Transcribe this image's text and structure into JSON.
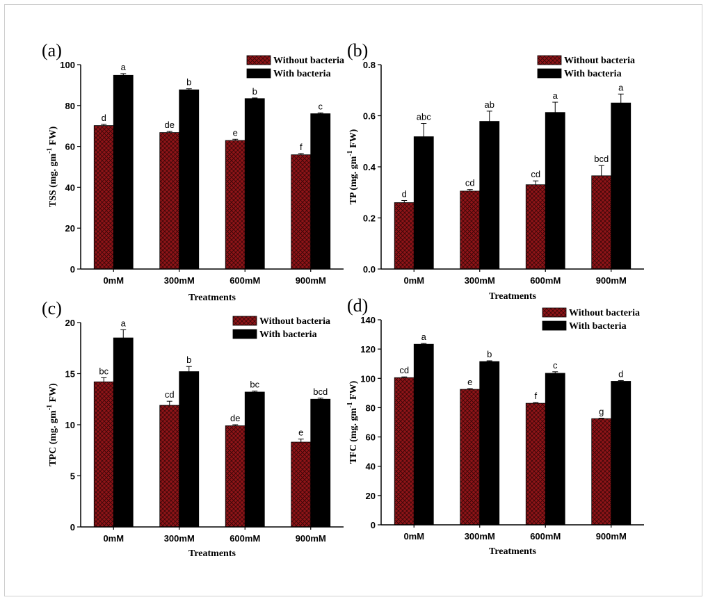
{
  "colors": {
    "without_bacteria": "#8f1418",
    "without_bacteria_hatch": "#3a0608",
    "with_bacteria": "#000000"
  },
  "chart_data": [
    {
      "id": "a",
      "type": "bar",
      "panel_label": "(a)",
      "categories": [
        "0mM",
        "300mM",
        "600mM",
        "900mM"
      ],
      "ylabel_main": "TSS (mg. gm",
      "ylabel_sup": "-1",
      "ylabel_tail": " FW)",
      "xlabel": "",
      "ylim": [
        0,
        100
      ],
      "yticks": [
        0,
        20,
        40,
        60,
        80,
        100
      ],
      "ytick_labels": [
        "0",
        "20",
        "40",
        "60",
        "80",
        "100"
      ],
      "legend": [
        "Without bacteria",
        "With bacteria"
      ],
      "series": [
        {
          "name": "Without bacteria",
          "values": [
            70.2,
            66.8,
            62.9,
            55.9
          ],
          "errors": [
            0.6,
            0.5,
            0.6,
            0.6
          ],
          "letters": [
            "d",
            "de",
            "e",
            "f"
          ]
        },
        {
          "name": "With bacteria",
          "values": [
            94.8,
            87.7,
            83.4,
            76.0
          ],
          "errors": [
            0.8,
            0.5,
            0.3,
            0.4
          ],
          "letters": [
            "a",
            "b",
            "b",
            "c"
          ]
        }
      ]
    },
    {
      "id": "b",
      "type": "bar",
      "panel_label": "(b)",
      "categories": [
        "0mM",
        "300mM",
        "600mM",
        "900mM"
      ],
      "ylabel_main": "TP (mg. gm",
      "ylabel_sup": "-1",
      "ylabel_tail": " FW)",
      "xlabel": "Treatments",
      "ylim": [
        0,
        0.8
      ],
      "yticks": [
        0,
        0.2,
        0.4,
        0.6,
        0.8
      ],
      "ytick_labels": [
        "0.0",
        "0.2",
        "0.4",
        "0.6",
        "0.8"
      ],
      "legend": [
        "Without bacteria",
        "With bacteria"
      ],
      "series": [
        {
          "name": "Without bacteria",
          "values": [
            0.26,
            0.305,
            0.33,
            0.365
          ],
          "errors": [
            0.008,
            0.006,
            0.015,
            0.04
          ],
          "letters": [
            "d",
            "cd",
            "cd",
            "bcd"
          ]
        },
        {
          "name": "With bacteria",
          "values": [
            0.518,
            0.578,
            0.613,
            0.65
          ],
          "errors": [
            0.052,
            0.04,
            0.04,
            0.035
          ],
          "letters": [
            "abc",
            "ab",
            "a",
            "a"
          ]
        }
      ]
    },
    {
      "id": "c",
      "type": "bar",
      "panel_label": "(c)",
      "categories": [
        "0mM",
        "300mM",
        "600mM",
        "900mM"
      ],
      "ylabel_main": "TPC (mg. gm",
      "ylabel_sup": "-1",
      "ylabel_tail": " FW)",
      "xlabel": "Treatments",
      "ylim": [
        0,
        20
      ],
      "yticks": [
        0,
        5,
        10,
        15,
        20
      ],
      "ytick_labels": [
        "0",
        "5",
        "10",
        "15",
        "20"
      ],
      "legend": [
        "Without bacteria",
        "With bacteria"
      ],
      "series": [
        {
          "name": "Without bacteria",
          "values": [
            14.2,
            11.9,
            9.9,
            8.3
          ],
          "errors": [
            0.4,
            0.4,
            0.1,
            0.3
          ],
          "letters": [
            "bc",
            "cd",
            "de",
            "e"
          ]
        },
        {
          "name": "With bacteria",
          "values": [
            18.5,
            15.2,
            13.2,
            12.5
          ],
          "errors": [
            0.8,
            0.5,
            0.1,
            0.1
          ],
          "letters": [
            "a",
            "b",
            "bc",
            "bcd"
          ]
        }
      ]
    },
    {
      "id": "d",
      "type": "bar",
      "panel_label": "(d)",
      "categories": [
        "0mM",
        "300mM",
        "600mM",
        "900mM"
      ],
      "ylabel_main": "TFC (mg. gm",
      "ylabel_sup": "-1",
      "ylabel_tail": " FW)",
      "xlabel": "Treatments",
      "ylim": [
        0,
        140
      ],
      "yticks": [
        0,
        20,
        40,
        60,
        80,
        100,
        120,
        140
      ],
      "ytick_labels": [
        "0",
        "20",
        "40",
        "60",
        "80",
        "100",
        "120",
        "140"
      ],
      "legend": [
        "Without bacteria",
        "With bacteria"
      ],
      "series": [
        {
          "name": "Without bacteria",
          "values": [
            100.5,
            92.5,
            83.0,
            72.5
          ],
          "errors": [
            0.5,
            0.5,
            0.5,
            0.3
          ],
          "letters": [
            "cd",
            "e",
            "f",
            "g"
          ]
        },
        {
          "name": "With bacteria",
          "values": [
            123.3,
            111.5,
            103.5,
            98.0
          ],
          "errors": [
            0.5,
            0.5,
            1.0,
            0.5
          ],
          "letters": [
            "a",
            "b",
            "c",
            "d"
          ]
        }
      ]
    }
  ]
}
